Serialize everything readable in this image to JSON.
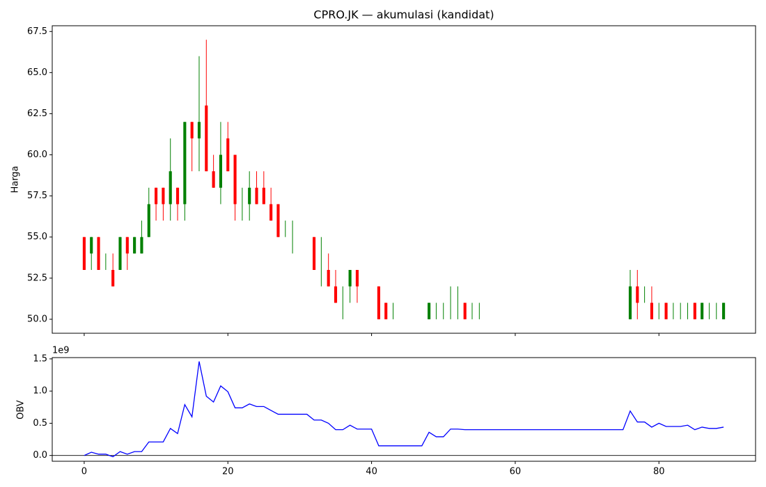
{
  "chart_data": [
    {
      "type": "candlestick",
      "title": "CPRO.JK  —  akumulasi (kandidat)",
      "ylabel": "Harga",
      "up_color": "green",
      "down_color": "red",
      "x": [
        0,
        1,
        2,
        3,
        4,
        5,
        6,
        7,
        8,
        9,
        10,
        11,
        12,
        13,
        14,
        15,
        16,
        17,
        18,
        19,
        20,
        21,
        22,
        23,
        24,
        25,
        26,
        27,
        28,
        29,
        30,
        31,
        32,
        33,
        34,
        35,
        36,
        37,
        38,
        39,
        40,
        41,
        42,
        43,
        44,
        45,
        46,
        47,
        48,
        49,
        50,
        51,
        52,
        53,
        54,
        55,
        56,
        57,
        58,
        59,
        60,
        61,
        62,
        63,
        64,
        65,
        66,
        67,
        68,
        69,
        70,
        71,
        72,
        73,
        74,
        75,
        76,
        77,
        78,
        79,
        80,
        81,
        82,
        83,
        84,
        85,
        86,
        87,
        88,
        89
      ],
      "open": [
        55,
        54,
        55,
        53,
        53,
        53,
        55,
        54,
        54,
        55,
        58,
        58,
        57,
        58,
        57,
        62,
        61,
        63,
        59,
        58,
        61,
        60,
        57,
        57,
        58,
        58,
        57,
        57,
        55,
        55,
        null,
        null,
        55,
        53,
        53,
        52,
        51,
        52,
        53,
        null,
        null,
        52,
        51,
        50,
        null,
        null,
        null,
        null,
        50,
        50,
        50,
        50,
        50,
        51,
        50,
        50,
        null,
        null,
        null,
        null,
        null,
        null,
        null,
        null,
        null,
        null,
        null,
        null,
        null,
        null,
        null,
        null,
        null,
        null,
        null,
        null,
        50,
        52,
        51,
        51,
        50,
        51,
        50,
        50,
        50,
        51,
        50,
        50,
        50,
        50
      ],
      "high": [
        55,
        55,
        55,
        54,
        54,
        55,
        55,
        55,
        56,
        58,
        58,
        58,
        61,
        58,
        62,
        62,
        66,
        67,
        60,
        62,
        62,
        60,
        58,
        59,
        59,
        59,
        58,
        57,
        56,
        56,
        null,
        null,
        55,
        55,
        54,
        53,
        52,
        53,
        53,
        null,
        null,
        52,
        51,
        51,
        null,
        null,
        null,
        null,
        51,
        51,
        51,
        52,
        52,
        51,
        51,
        51,
        null,
        null,
        null,
        null,
        null,
        null,
        null,
        null,
        null,
        null,
        null,
        null,
        null,
        null,
        null,
        null,
        null,
        null,
        null,
        null,
        53,
        53,
        52,
        52,
        51,
        51,
        51,
        51,
        51,
        51,
        51,
        51,
        51,
        51
      ],
      "low": [
        53,
        53,
        53,
        53,
        52,
        53,
        53,
        54,
        54,
        55,
        56,
        56,
        56,
        56,
        56,
        59,
        59,
        59,
        58,
        57,
        59,
        56,
        56,
        56,
        57,
        57,
        56,
        55,
        55,
        54,
        null,
        null,
        53,
        52,
        52,
        51,
        50,
        51,
        51,
        null,
        null,
        50,
        50,
        50,
        null,
        null,
        null,
        null,
        50,
        50,
        50,
        50,
        50,
        50,
        50,
        50,
        null,
        null,
        null,
        null,
        null,
        null,
        null,
        null,
        null,
        null,
        null,
        null,
        null,
        null,
        null,
        null,
        null,
        null,
        null,
        null,
        50,
        50,
        51,
        50,
        50,
        50,
        50,
        50,
        50,
        50,
        50,
        50,
        50,
        50
      ],
      "close": [
        53,
        55,
        53,
        53,
        52,
        55,
        54,
        55,
        55,
        57,
        57,
        57,
        59,
        57,
        62,
        61,
        62,
        59,
        58,
        60,
        59,
        57,
        57,
        58,
        57,
        57,
        56,
        55,
        55,
        55,
        null,
        null,
        53,
        53,
        52,
        51,
        51,
        53,
        52,
        null,
        null,
        50,
        50,
        50,
        null,
        null,
        null,
        null,
        51,
        50,
        50,
        50,
        50,
        50,
        50,
        50,
        null,
        null,
        null,
        null,
        null,
        null,
        null,
        null,
        null,
        null,
        null,
        null,
        null,
        null,
        null,
        null,
        null,
        null,
        null,
        null,
        52,
        51,
        51,
        50,
        50,
        50,
        50,
        50,
        50,
        50,
        51,
        50,
        50,
        51
      ],
      "xlim": [
        -4.45,
        93.45
      ],
      "xticks": [
        0,
        20,
        40,
        60,
        80
      ],
      "ylim": [
        49.15,
        67.85
      ],
      "yticks": [
        {
          "value": 50,
          "label": "50.0"
        },
        52.5,
        {
          "value": 55,
          "label": "55.0"
        },
        57.5,
        {
          "value": 60,
          "label": "60.0"
        },
        62.5,
        {
          "value": 65,
          "label": "65.0"
        },
        67.5
      ]
    },
    {
      "type": "line",
      "ylabel": "OBV",
      "offset_text": "1e9",
      "color": "blue",
      "hline": 0,
      "hline_color": "black",
      "x": [
        0,
        1,
        2,
        3,
        4,
        5,
        6,
        7,
        8,
        9,
        10,
        11,
        12,
        13,
        14,
        15,
        16,
        17,
        18,
        19,
        20,
        21,
        22,
        23,
        24,
        25,
        26,
        27,
        28,
        29,
        30,
        31,
        32,
        33,
        34,
        35,
        36,
        37,
        38,
        39,
        40,
        41,
        42,
        43,
        44,
        45,
        46,
        47,
        48,
        49,
        50,
        51,
        52,
        53,
        54,
        55,
        56,
        57,
        58,
        59,
        60,
        61,
        62,
        63,
        64,
        65,
        66,
        67,
        68,
        69,
        70,
        71,
        72,
        73,
        74,
        75,
        76,
        77,
        78,
        79,
        80,
        81,
        82,
        83,
        84,
        85,
        86,
        87,
        88,
        89
      ],
      "values": [
        0,
        50000000,
        20000000,
        20000000,
        -20000000,
        60000000,
        20000000,
        60000000,
        60000000,
        210000000,
        210000000,
        210000000,
        420000000,
        340000000,
        790000000,
        600000000,
        1460000000,
        920000000,
        830000000,
        1080000000,
        990000000,
        740000000,
        740000000,
        800000000,
        760000000,
        760000000,
        700000000,
        640000000,
        640000000,
        640000000,
        640000000,
        640000000,
        550000000,
        550000000,
        500000000,
        400000000,
        400000000,
        470000000,
        410000000,
        410000000,
        410000000,
        150000000,
        150000000,
        150000000,
        150000000,
        150000000,
        150000000,
        150000000,
        360000000,
        290000000,
        290000000,
        410000000,
        410000000,
        400000000,
        400000000,
        400000000,
        400000000,
        400000000,
        400000000,
        400000000,
        400000000,
        400000000,
        400000000,
        400000000,
        400000000,
        400000000,
        400000000,
        400000000,
        400000000,
        400000000,
        400000000,
        400000000,
        400000000,
        400000000,
        400000000,
        400000000,
        690000000,
        520000000,
        520000000,
        440000000,
        500000000,
        450000000,
        450000000,
        450000000,
        470000000,
        400000000,
        440000000,
        420000000,
        420000000,
        440000000
      ],
      "xlim": [
        -4.45,
        93.45
      ],
      "xticks": [
        0,
        20,
        40,
        60,
        80
      ],
      "ylim": [
        -90000000,
        1520000000
      ],
      "yticks": [
        {
          "value": 0,
          "label": "0.0"
        },
        {
          "value": 500000000,
          "label": "0.5"
        },
        {
          "value": 1000000000,
          "label": "1.0"
        },
        {
          "value": 1500000000,
          "label": "1.5"
        }
      ]
    }
  ]
}
